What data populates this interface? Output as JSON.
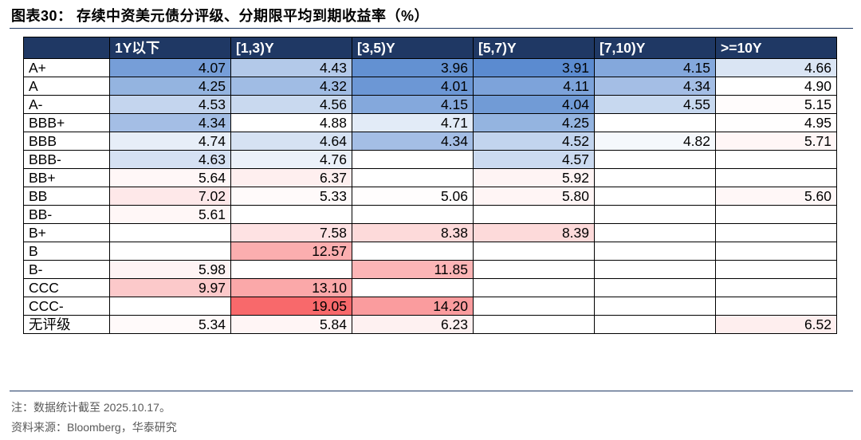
{
  "title": "图表30：  存续中资美元债分评级、分期限平均到期收益率（%）",
  "note": "注：数据统计截至 2025.10.17。",
  "source": "资料来源：Bloomberg，华泰研究",
  "chart_data": {
    "type": "heatmap",
    "title": "图表30：  存续中资美元债分评级、分期限平均到期收益率（%）",
    "columns": [
      "1Y以下",
      "[1,3)Y",
      "[3,5)Y",
      "[5,7)Y",
      "[7,10)Y",
      ">=10Y"
    ],
    "rows": [
      "A+",
      "A",
      "A-",
      "BBB+",
      "BBB",
      "BBB-",
      "BB+",
      "BB",
      "BB-",
      "B+",
      "B",
      "B-",
      "CCC",
      "CCC-",
      "无评级"
    ],
    "values": [
      [
        4.07,
        4.43,
        3.96,
        3.91,
        4.15,
        4.66
      ],
      [
        4.25,
        4.32,
        4.01,
        4.11,
        4.34,
        4.9
      ],
      [
        4.53,
        4.56,
        4.15,
        4.04,
        4.55,
        5.15
      ],
      [
        4.34,
        4.88,
        4.71,
        4.25,
        null,
        4.95
      ],
      [
        4.74,
        4.64,
        4.34,
        4.52,
        4.82,
        5.71
      ],
      [
        4.63,
        4.76,
        null,
        4.57,
        null,
        null
      ],
      [
        5.64,
        6.37,
        null,
        5.92,
        null,
        null
      ],
      [
        7.02,
        5.33,
        5.06,
        5.8,
        null,
        5.6
      ],
      [
        5.61,
        null,
        null,
        null,
        null,
        null
      ],
      [
        null,
        7.58,
        8.38,
        8.39,
        null,
        null
      ],
      [
        null,
        12.57,
        null,
        null,
        null,
        null
      ],
      [
        5.98,
        null,
        11.85,
        null,
        null,
        null
      ],
      [
        9.97,
        13.1,
        null,
        null,
        null,
        null
      ],
      [
        null,
        19.05,
        14.2,
        null,
        null,
        null
      ],
      [
        5.34,
        5.84,
        6.23,
        null,
        null,
        6.52
      ]
    ],
    "color_scale": {
      "low": "#5b8bd0",
      "mid": "#ffffff",
      "high": "#f8696b"
    },
    "header_color": "#1f3864"
  }
}
